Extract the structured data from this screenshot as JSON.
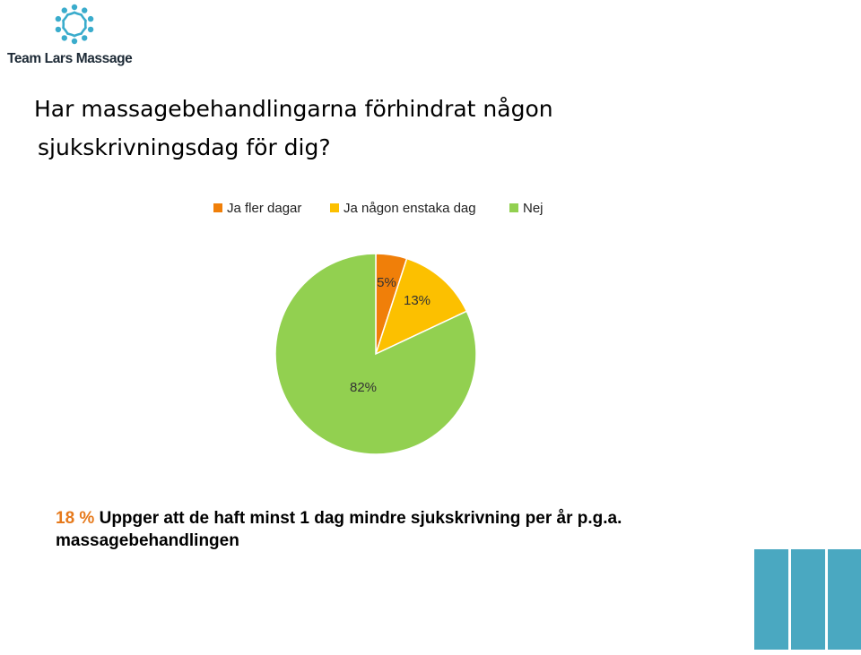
{
  "brand": {
    "name": "Team Lars Massage",
    "accent_color": "#3aaccc",
    "text_color": "#1d2a36"
  },
  "title": {
    "line1": "Har massagebehandlingarna förhindrat någon",
    "line2": "sjukskrivningsdag för dig?"
  },
  "chart_data": {
    "type": "pie",
    "categories": [
      "Ja fler dagar",
      "Ja någon enstaka dag",
      "Nej"
    ],
    "values": [
      5,
      13,
      82
    ],
    "labels": [
      "5%",
      "13%",
      "82%"
    ],
    "colors": [
      "#f07f09",
      "#fcc000",
      "#92d050"
    ],
    "legend_position": "top"
  },
  "summary": {
    "highlight": "18 %",
    "text": "Uppger att de haft minst 1 dag mindre sjukskrivning per år p.g.a. massagebehandlingen",
    "highlight_color": "#e6791b"
  },
  "decor": {
    "bars_color": "#4aa8c1"
  }
}
